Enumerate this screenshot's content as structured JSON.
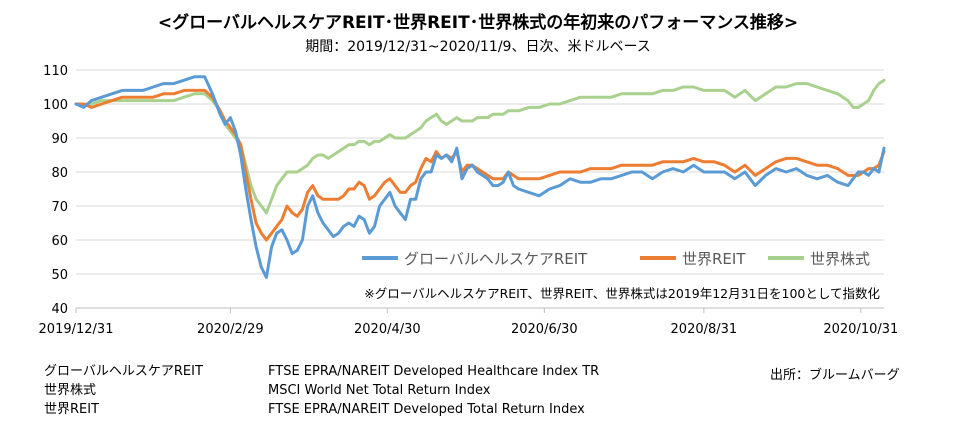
{
  "chart_data": {
    "type": "line",
    "title": "<グローバルヘルスケアREIT･世界REIT･世界株式の年初来のパフォーマンス推移>",
    "subtitle": "期間：2019/12/31~2020/11/9、日次、米ドルベース",
    "ylim": [
      40,
      110
    ],
    "yticks": [
      "40",
      "50",
      "60",
      "70",
      "80",
      "90",
      "100",
      "110"
    ],
    "xlim": [
      0,
      314
    ],
    "xticks": [
      {
        "label": "2019/12/31",
        "day": 0
      },
      {
        "label": "2020/2/29",
        "day": 60
      },
      {
        "label": "2020/4/30",
        "day": 121
      },
      {
        "label": "2020/6/30",
        "day": 182
      },
      {
        "label": "2020/8/31",
        "day": 244
      },
      {
        "label": "2020/10/31",
        "day": 305
      }
    ],
    "note": "※グローバルヘルスケアREIT、世界REIT、世界株式は2019年12月31日を100として指数化",
    "legend_position": "bottom-right",
    "series": [
      {
        "name": "グローバルヘルスケアREIT",
        "color": "#5b9bd5",
        "x": [
          0,
          3,
          6,
          10,
          14,
          18,
          22,
          26,
          30,
          34,
          38,
          42,
          46,
          50,
          53,
          56,
          58,
          60,
          62,
          64,
          66,
          68,
          70,
          72,
          74,
          76,
          78,
          80,
          82,
          84,
          86,
          88,
          90,
          92,
          94,
          96,
          98,
          100,
          102,
          104,
          106,
          108,
          110,
          112,
          114,
          116,
          118,
          120,
          122,
          124,
          126,
          128,
          130,
          132,
          134,
          136,
          138,
          140,
          142,
          144,
          146,
          148,
          150,
          152,
          154,
          156,
          158,
          160,
          162,
          164,
          166,
          168,
          170,
          172,
          176,
          180,
          184,
          188,
          192,
          196,
          200,
          204,
          208,
          212,
          216,
          220,
          224,
          228,
          232,
          236,
          240,
          244,
          248,
          252,
          256,
          260,
          264,
          268,
          272,
          276,
          280,
          284,
          288,
          292,
          296,
          300,
          302,
          304,
          306,
          308,
          310,
          312,
          314
        ],
        "values": [
          100,
          99,
          101,
          102,
          103,
          104,
          104,
          104,
          105,
          106,
          106,
          107,
          108,
          108,
          103,
          97,
          94,
          96,
          92,
          85,
          75,
          66,
          58,
          52,
          49,
          58,
          62,
          63,
          60,
          56,
          57,
          60,
          70,
          73,
          68,
          65,
          63,
          61,
          62,
          64,
          65,
          64,
          67,
          66,
          62,
          64,
          70,
          72,
          74,
          70,
          68,
          66,
          72,
          72,
          78,
          80,
          80,
          85,
          84,
          85,
          83,
          87,
          78,
          81,
          82,
          80,
          79,
          78,
          76,
          76,
          77,
          80,
          76,
          75,
          74,
          73,
          75,
          76,
          78,
          77,
          77,
          78,
          78,
          79,
          80,
          80,
          78,
          80,
          81,
          80,
          82,
          80,
          80,
          80,
          78,
          80,
          76,
          79,
          81,
          80,
          81,
          79,
          78,
          79,
          77,
          76,
          78,
          80,
          80,
          79,
          81,
          80,
          87
        ]
      },
      {
        "name": "世界REIT",
        "color": "#ed7d31",
        "x": [
          0,
          3,
          6,
          10,
          14,
          18,
          22,
          26,
          30,
          34,
          38,
          42,
          46,
          50,
          53,
          56,
          58,
          60,
          62,
          64,
          66,
          68,
          70,
          72,
          74,
          76,
          78,
          80,
          82,
          84,
          86,
          88,
          90,
          92,
          94,
          96,
          98,
          100,
          102,
          104,
          106,
          108,
          110,
          112,
          114,
          116,
          118,
          120,
          122,
          124,
          126,
          128,
          130,
          132,
          134,
          136,
          138,
          140,
          142,
          144,
          146,
          148,
          150,
          152,
          154,
          156,
          158,
          160,
          162,
          164,
          166,
          168,
          170,
          172,
          176,
          180,
          184,
          188,
          192,
          196,
          200,
          204,
          208,
          212,
          216,
          220,
          224,
          228,
          232,
          236,
          240,
          244,
          248,
          252,
          256,
          260,
          264,
          268,
          272,
          276,
          280,
          284,
          288,
          292,
          296,
          300,
          302,
          304,
          306,
          308,
          310,
          312,
          314
        ],
        "values": [
          100,
          100,
          99,
          100,
          101,
          102,
          102,
          102,
          102,
          103,
          103,
          104,
          104,
          104,
          102,
          98,
          95,
          93,
          91,
          88,
          80,
          72,
          65,
          62,
          60,
          62,
          64,
          66,
          70,
          68,
          67,
          69,
          74,
          76,
          73,
          72,
          72,
          72,
          72,
          73,
          75,
          75,
          77,
          76,
          72,
          73,
          75,
          77,
          78,
          76,
          74,
          74,
          76,
          77,
          81,
          84,
          83,
          86,
          84,
          85,
          84,
          86,
          80,
          82,
          82,
          81,
          80,
          79,
          78,
          78,
          78,
          80,
          79,
          78,
          78,
          78,
          79,
          80,
          80,
          80,
          81,
          81,
          81,
          82,
          82,
          82,
          82,
          83,
          83,
          83,
          84,
          83,
          83,
          82,
          80,
          82,
          79,
          81,
          83,
          84,
          84,
          83,
          82,
          82,
          81,
          79,
          79,
          79,
          80,
          81,
          81,
          82,
          86
        ]
      },
      {
        "name": "世界株式",
        "color": "#a9d18e",
        "x": [
          0,
          3,
          6,
          10,
          14,
          18,
          22,
          26,
          30,
          34,
          38,
          42,
          46,
          50,
          53,
          56,
          58,
          60,
          62,
          64,
          66,
          68,
          70,
          72,
          74,
          76,
          78,
          80,
          82,
          84,
          86,
          88,
          90,
          92,
          94,
          96,
          98,
          100,
          102,
          104,
          106,
          108,
          110,
          112,
          114,
          116,
          118,
          120,
          122,
          124,
          126,
          128,
          130,
          132,
          134,
          136,
          138,
          140,
          142,
          144,
          146,
          148,
          150,
          152,
          154,
          156,
          158,
          160,
          162,
          164,
          166,
          168,
          170,
          172,
          176,
          180,
          184,
          188,
          192,
          196,
          200,
          204,
          208,
          212,
          216,
          220,
          224,
          228,
          232,
          236,
          240,
          244,
          248,
          252,
          256,
          260,
          264,
          268,
          272,
          276,
          280,
          284,
          288,
          292,
          296,
          300,
          302,
          304,
          306,
          308,
          310,
          312,
          314
        ],
        "values": [
          100,
          100,
          100,
          101,
          101,
          101,
          101,
          101,
          101,
          101,
          101,
          102,
          103,
          103,
          101,
          98,
          94,
          92,
          90,
          88,
          82,
          76,
          72,
          70,
          68,
          72,
          76,
          78,
          80,
          80,
          80,
          81,
          82,
          84,
          85,
          85,
          84,
          85,
          86,
          87,
          88,
          88,
          89,
          89,
          88,
          89,
          89,
          90,
          91,
          90,
          90,
          90,
          91,
          92,
          93,
          95,
          96,
          97,
          95,
          94,
          95,
          96,
          95,
          95,
          95,
          96,
          96,
          96,
          97,
          97,
          97,
          98,
          98,
          98,
          99,
          99,
          100,
          100,
          101,
          102,
          102,
          102,
          102,
          103,
          103,
          103,
          103,
          104,
          104,
          105,
          105,
          104,
          104,
          104,
          102,
          104,
          101,
          103,
          105,
          105,
          106,
          106,
          105,
          104,
          103,
          101,
          99,
          99,
          100,
          101,
          104,
          106,
          107
        ]
      }
    ]
  },
  "footnotes": {
    "names": [
      "グローバルヘルスケアREIT",
      "世界株式",
      "世界REIT"
    ],
    "indices": [
      "FTSE EPRA/NAREIT Developed Healthcare Index TR",
      "MSCI World Net Total Return Index",
      "FTSE EPRA/NAREIT Developed Total Return Index"
    ],
    "source": "出所：ブルームバーグ"
  }
}
